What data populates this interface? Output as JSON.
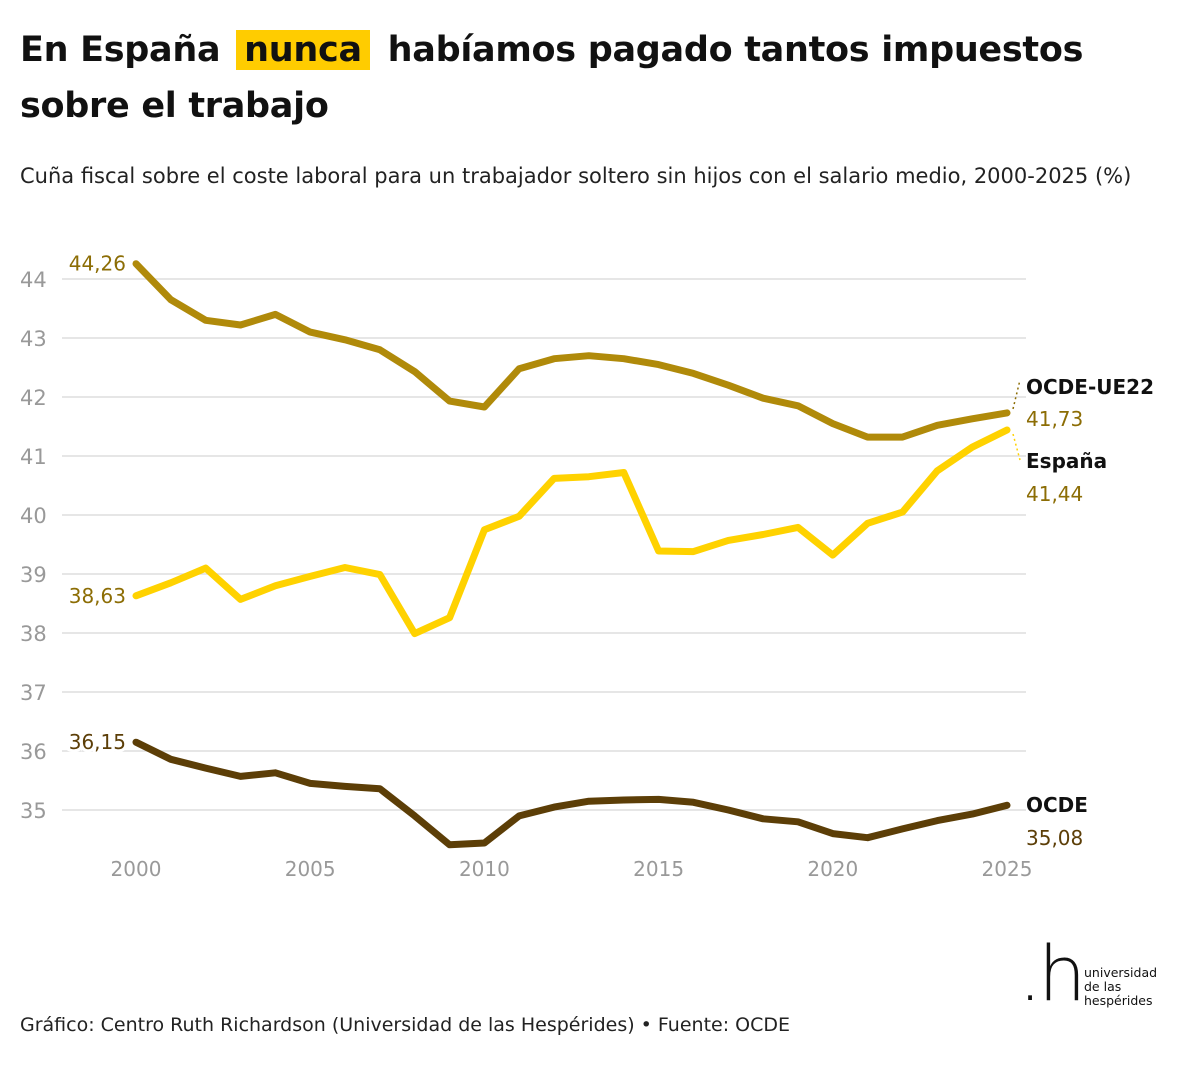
{
  "title": {
    "before": "En España",
    "highlight": "nunca",
    "after": "habíamos pagado tantos impuestos sobre el trabajo"
  },
  "subtitle": "Cuña fiscal sobre el coste laboral para un trabajador soltero sin hijos con el salario medio, 2000-2025 (%)",
  "footer": "Gráfico: Centro Ruth Richardson (Universidad de las Hespérides) • Fuente: OCDE",
  "logo": {
    "mark": ".h",
    "lines": [
      "universidad",
      "de las",
      "hespérides"
    ]
  },
  "colors": {
    "ocde_ue22": "#b08a0a",
    "espana": "#ffd200",
    "ocde": "#5c3e07",
    "grid": "#dddddd",
    "axis_text": "#999999",
    "label_gold": "#8c6d05",
    "label_dark": "#5c3e07"
  },
  "chart_data": {
    "type": "line",
    "title": "En España nunca habíamos pagado tantos impuestos sobre el trabajo",
    "xlabel": "",
    "ylabel": "",
    "x": [
      2000,
      2001,
      2002,
      2003,
      2004,
      2005,
      2006,
      2007,
      2008,
      2009,
      2010,
      2011,
      2012,
      2013,
      2014,
      2015,
      2016,
      2017,
      2018,
      2019,
      2020,
      2021,
      2022,
      2023,
      2024,
      2025
    ],
    "xticks": [
      2000,
      2005,
      2010,
      2015,
      2020,
      2025
    ],
    "ylim": [
      34.8,
      44.5
    ],
    "yticks": [
      35,
      36,
      37,
      38,
      39,
      40,
      41,
      42,
      43,
      44
    ],
    "series": [
      {
        "key": "ocde_ue22",
        "name": "OCDE-UE22",
        "color_key": "ocde_ue22",
        "values": [
          44.26,
          43.65,
          43.3,
          43.22,
          43.4,
          43.1,
          42.97,
          42.8,
          42.43,
          41.93,
          41.83,
          42.48,
          42.65,
          42.7,
          42.65,
          42.55,
          42.4,
          42.2,
          41.98,
          41.85,
          41.55,
          41.32,
          41.32,
          41.52,
          41.63,
          41.73
        ],
        "start_label": "44,26",
        "end_label": "41,73"
      },
      {
        "key": "espana",
        "name": "España",
        "color_key": "espana",
        "values": [
          38.63,
          38.85,
          39.1,
          38.57,
          38.8,
          38.96,
          39.11,
          38.99,
          37.99,
          38.26,
          39.75,
          39.98,
          40.62,
          40.65,
          40.72,
          39.39,
          39.38,
          39.57,
          39.67,
          39.79,
          39.32,
          39.86,
          40.05,
          40.75,
          41.15,
          41.44
        ],
        "start_label": "38,63",
        "end_label": "41,44"
      },
      {
        "key": "ocde",
        "name": "OCDE",
        "color_key": "ocde",
        "values": [
          36.15,
          35.86,
          35.71,
          35.57,
          35.63,
          35.45,
          35.4,
          35.36,
          34.9,
          34.41,
          34.44,
          34.9,
          35.05,
          35.15,
          35.17,
          35.18,
          35.13,
          35.0,
          34.85,
          34.8,
          34.6,
          34.53,
          34.68,
          34.82,
          34.93,
          35.08
        ],
        "start_label": "36,15",
        "end_label": "35,08"
      }
    ]
  }
}
